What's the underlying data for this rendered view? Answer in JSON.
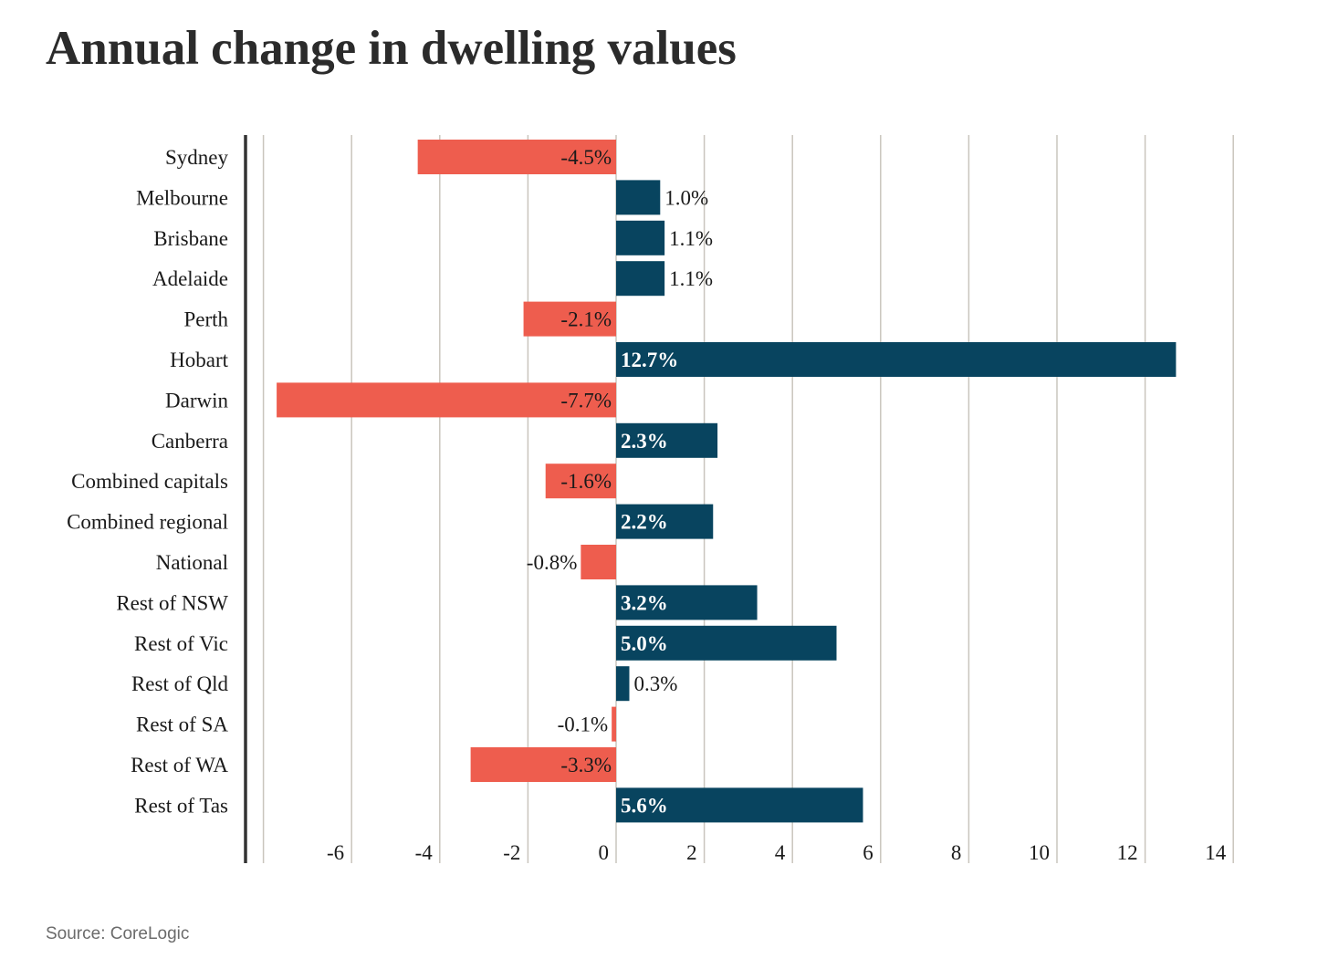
{
  "page": {
    "title": "Annual change in dwelling values",
    "source": "Source: CoreLogic"
  },
  "colors": {
    "positive": "#08445f",
    "negative": "#ee5d4e",
    "grid": "#c9c5bd",
    "axis_line": "#333333",
    "text": "#1a1a1a",
    "label_on_bar": "#ffffff"
  },
  "chart_data": {
    "type": "bar",
    "orientation": "horizontal",
    "title": "Annual change in dwelling values",
    "xlabel": "",
    "ylabel": "",
    "xlim": [
      -8,
      14
    ],
    "x_ticks": [
      -6,
      -4,
      -2,
      0,
      2,
      4,
      6,
      8,
      10,
      12,
      14
    ],
    "grid": true,
    "categories": [
      "Sydney",
      "Melbourne",
      "Brisbane",
      "Adelaide",
      "Perth",
      "Hobart",
      "Darwin",
      "Canberra",
      "Combined capitals",
      "Combined regional",
      "National",
      "Rest of NSW",
      "Rest of Vic",
      "Rest of Qld",
      "Rest of SA",
      "Rest of WA",
      "Rest of Tas"
    ],
    "values": [
      -4.5,
      1.0,
      1.1,
      1.1,
      -2.1,
      12.7,
      -7.7,
      2.3,
      -1.6,
      2.2,
      -0.8,
      3.2,
      5.0,
      0.3,
      -0.1,
      -3.3,
      5.6
    ],
    "data_labels": [
      "-4.5%",
      "1.0%",
      "1.1%",
      "1.1%",
      "-2.1%",
      "12.7%",
      "-7.7%",
      "2.3%",
      "-1.6%",
      "2.2%",
      "-0.8%",
      "3.2%",
      "5.0%",
      "0.3%",
      "-0.1%",
      "-3.3%",
      "5.6%"
    ]
  }
}
